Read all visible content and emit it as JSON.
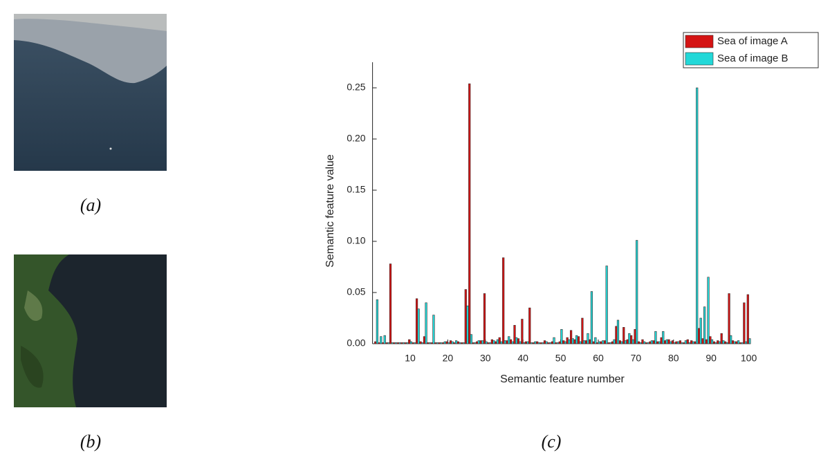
{
  "captions": {
    "a": "(a)",
    "b": "(b)",
    "c": "(c)"
  },
  "chart_data": {
    "type": "bar",
    "xlabel": "Semantic feature number",
    "ylabel": "Semantic feature value",
    "x": [
      1,
      2,
      3,
      4,
      5,
      6,
      7,
      8,
      9,
      10,
      11,
      12,
      13,
      14,
      15,
      16,
      17,
      18,
      19,
      20,
      21,
      22,
      23,
      24,
      25,
      26,
      27,
      28,
      29,
      30,
      31,
      32,
      33,
      34,
      35,
      36,
      37,
      38,
      39,
      40,
      41,
      42,
      43,
      44,
      45,
      46,
      47,
      48,
      49,
      50,
      51,
      52,
      53,
      54,
      55,
      56,
      57,
      58,
      59,
      60,
      61,
      62,
      63,
      64,
      65,
      66,
      67,
      68,
      69,
      70,
      71,
      72,
      73,
      74,
      75,
      76,
      77,
      78,
      79,
      80,
      81,
      82,
      83,
      84,
      85,
      86,
      87,
      88,
      89,
      90,
      91,
      92,
      93,
      94,
      95,
      96,
      97,
      98,
      99,
      100
    ],
    "series": [
      {
        "name": "Sea of image A",
        "color": "#d41414",
        "values": [
          0.002,
          0.001,
          0.001,
          0.001,
          0.078,
          0.001,
          0.001,
          0.001,
          0.001,
          0.004,
          0.001,
          0.044,
          0.002,
          0.007,
          0.001,
          0.001,
          0.001,
          0.001,
          0.001,
          0.002,
          0.003,
          0.001,
          0.002,
          0.001,
          0.053,
          0.254,
          0.001,
          0.002,
          0.003,
          0.049,
          0.001,
          0.004,
          0.002,
          0.006,
          0.084,
          0.003,
          0.004,
          0.018,
          0.005,
          0.024,
          0.002,
          0.035,
          0.001,
          0.002,
          0.001,
          0.003,
          0.001,
          0.002,
          0.001,
          0.002,
          0.003,
          0.006,
          0.013,
          0.004,
          0.007,
          0.025,
          0.003,
          0.004,
          0.002,
          0.001,
          0.002,
          0.003,
          0.001,
          0.002,
          0.017,
          0.003,
          0.016,
          0.004,
          0.008,
          0.014,
          0.002,
          0.004,
          0.001,
          0.002,
          0.003,
          0.002,
          0.006,
          0.003,
          0.004,
          0.003,
          0.002,
          0.003,
          0.001,
          0.004,
          0.003,
          0.002,
          0.015,
          0.005,
          0.004,
          0.007,
          0.002,
          0.003,
          0.01,
          0.002,
          0.049,
          0.003,
          0.002,
          0.001,
          0.04,
          0.048
        ]
      },
      {
        "name": "Sea of image B",
        "color": "#22d8d8",
        "values": [
          0.043,
          0.007,
          0.008,
          0.001,
          0.001,
          0.001,
          0.001,
          0.001,
          0.001,
          0.002,
          0.001,
          0.034,
          0.001,
          0.04,
          0.001,
          0.028,
          0.001,
          0.001,
          0.002,
          0.001,
          0.002,
          0.003,
          0.001,
          0.001,
          0.037,
          0.009,
          0.001,
          0.003,
          0.003,
          0.002,
          0.001,
          0.003,
          0.004,
          0.002,
          0.003,
          0.007,
          0.002,
          0.006,
          0.002,
          0.001,
          0.002,
          0.001,
          0.002,
          0.001,
          0.001,
          0.002,
          0.001,
          0.006,
          0.001,
          0.014,
          0.002,
          0.004,
          0.005,
          0.008,
          0.002,
          0.003,
          0.01,
          0.051,
          0.006,
          0.002,
          0.003,
          0.076,
          0.001,
          0.004,
          0.023,
          0.002,
          0.003,
          0.01,
          0.004,
          0.101,
          0.001,
          0.002,
          0.001,
          0.003,
          0.012,
          0.002,
          0.012,
          0.004,
          0.002,
          0.001,
          0.002,
          0.001,
          0.003,
          0.001,
          0.002,
          0.25,
          0.025,
          0.036,
          0.065,
          0.004,
          0.001,
          0.002,
          0.003,
          0.001,
          0.008,
          0.002,
          0.003,
          0.001,
          0.002,
          0.005
        ]
      }
    ],
    "xlim": [
      0,
      100.5
    ],
    "xticks": [
      10,
      20,
      30,
      40,
      50,
      60,
      70,
      80,
      90,
      100
    ],
    "ylim": [
      0,
      0.275
    ],
    "yticks": [
      {
        "value": 0,
        "label": "0.00"
      },
      {
        "value": 0.05,
        "label": "0.05"
      },
      {
        "value": 0.1,
        "label": "0.10"
      },
      {
        "value": 0.15,
        "label": "0.15"
      },
      {
        "value": 0.2,
        "label": "0.20"
      },
      {
        "value": 0.25,
        "label": "0.25"
      }
    ],
    "legend": "upper-right",
    "grid": false
  }
}
